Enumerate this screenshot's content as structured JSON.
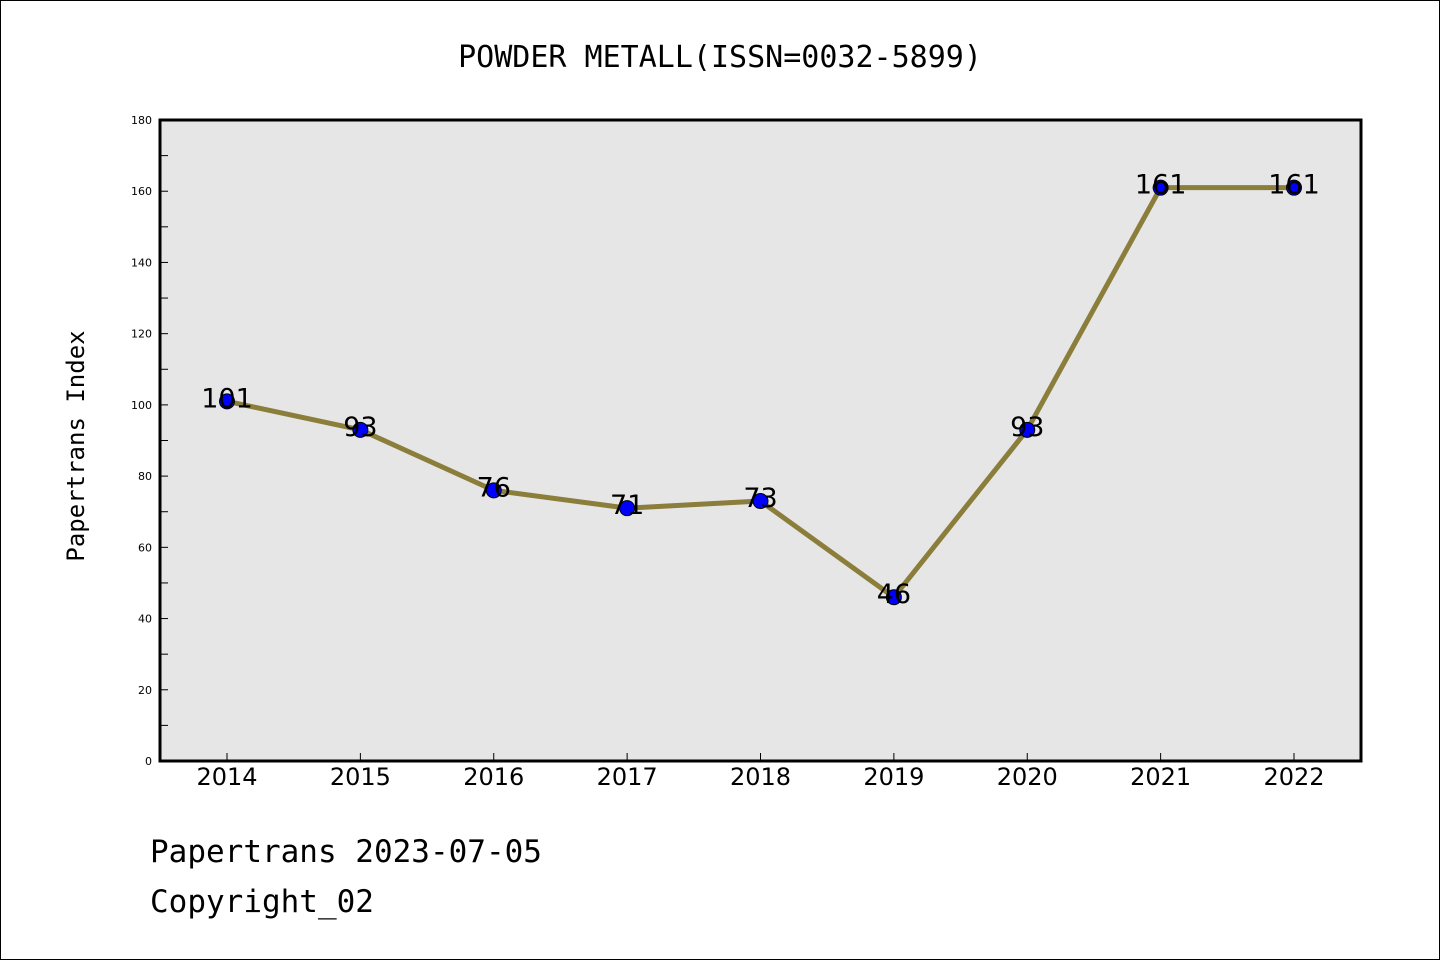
{
  "chart_data": {
    "type": "line",
    "title": "POWDER METALL(ISSN=0032-5899)",
    "xlabel": "",
    "ylabel": "Papertrans Index",
    "categories": [
      "2014",
      "2015",
      "2016",
      "2017",
      "2018",
      "2019",
      "2020",
      "2021",
      "2022"
    ],
    "series": [
      {
        "values": [
          101,
          93,
          76,
          71,
          73,
          46,
          93,
          161,
          161
        ]
      }
    ],
    "data_labels": [
      "101",
      "93",
      "76",
      "71",
      "73",
      "46",
      "93",
      "161",
      "161"
    ],
    "ylim": [
      0,
      180
    ],
    "yticks": [
      0,
      20,
      40,
      60,
      80,
      100,
      120,
      140,
      160,
      180
    ],
    "grid": false,
    "legend": "none",
    "colors": {
      "line": "#8b7d3a",
      "marker": "#0000ff",
      "marker_edge": "#000000",
      "plot_background": "#e6e6e6"
    }
  },
  "footer": {
    "line1": "Papertrans 2023-07-05",
    "line2": "Copyright_02"
  }
}
